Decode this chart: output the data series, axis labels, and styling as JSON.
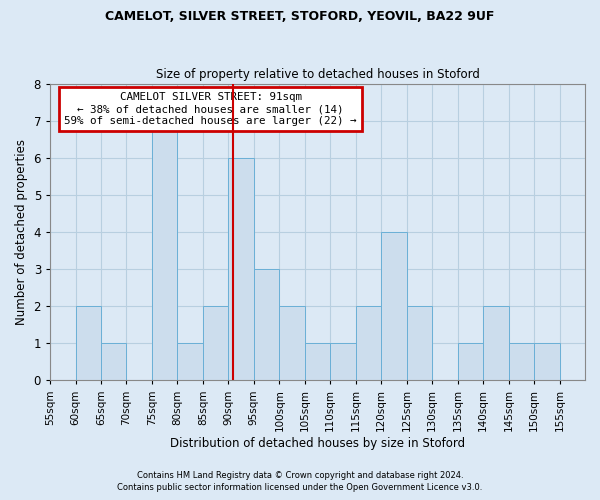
{
  "title": "CAMELOT, SILVER STREET, STOFORD, YEOVIL, BA22 9UF",
  "subtitle": "Size of property relative to detached houses in Stoford",
  "xlabel": "Distribution of detached houses by size in Stoford",
  "ylabel": "Number of detached properties",
  "bin_edges": [
    55,
    60,
    65,
    70,
    75,
    80,
    85,
    90,
    95,
    100,
    105,
    110,
    115,
    120,
    125,
    130,
    135,
    140,
    145,
    150,
    155,
    160
  ],
  "bin_labels": [
    55,
    60,
    65,
    70,
    75,
    80,
    85,
    90,
    95,
    100,
    105,
    110,
    115,
    120,
    125,
    130,
    135,
    140,
    145,
    150,
    155
  ],
  "counts": [
    0,
    2,
    1,
    0,
    7,
    1,
    2,
    6,
    3,
    2,
    1,
    1,
    2,
    4,
    2,
    0,
    1,
    2,
    1,
    1,
    0
  ],
  "bar_color": "#ccdded",
  "bar_edge_color": "#6aafd6",
  "property_size": 91,
  "red_line_x": 91,
  "annotation_title": "CAMELOT SILVER STREET: 91sqm",
  "annotation_line1": "← 38% of detached houses are smaller (14)",
  "annotation_line2": "59% of semi-detached houses are larger (22) →",
  "annotation_box_color": "#ffffff",
  "annotation_border_color": "#cc0000",
  "red_line_color": "#cc0000",
  "ylim": [
    0,
    8
  ],
  "yticks": [
    0,
    1,
    2,
    3,
    4,
    5,
    6,
    7,
    8
  ],
  "grid_color": "#b8cfe0",
  "bg_color": "#dce9f5",
  "footer1": "Contains HM Land Registry data © Crown copyright and database right 2024.",
  "footer2": "Contains public sector information licensed under the Open Government Licence v3.0."
}
